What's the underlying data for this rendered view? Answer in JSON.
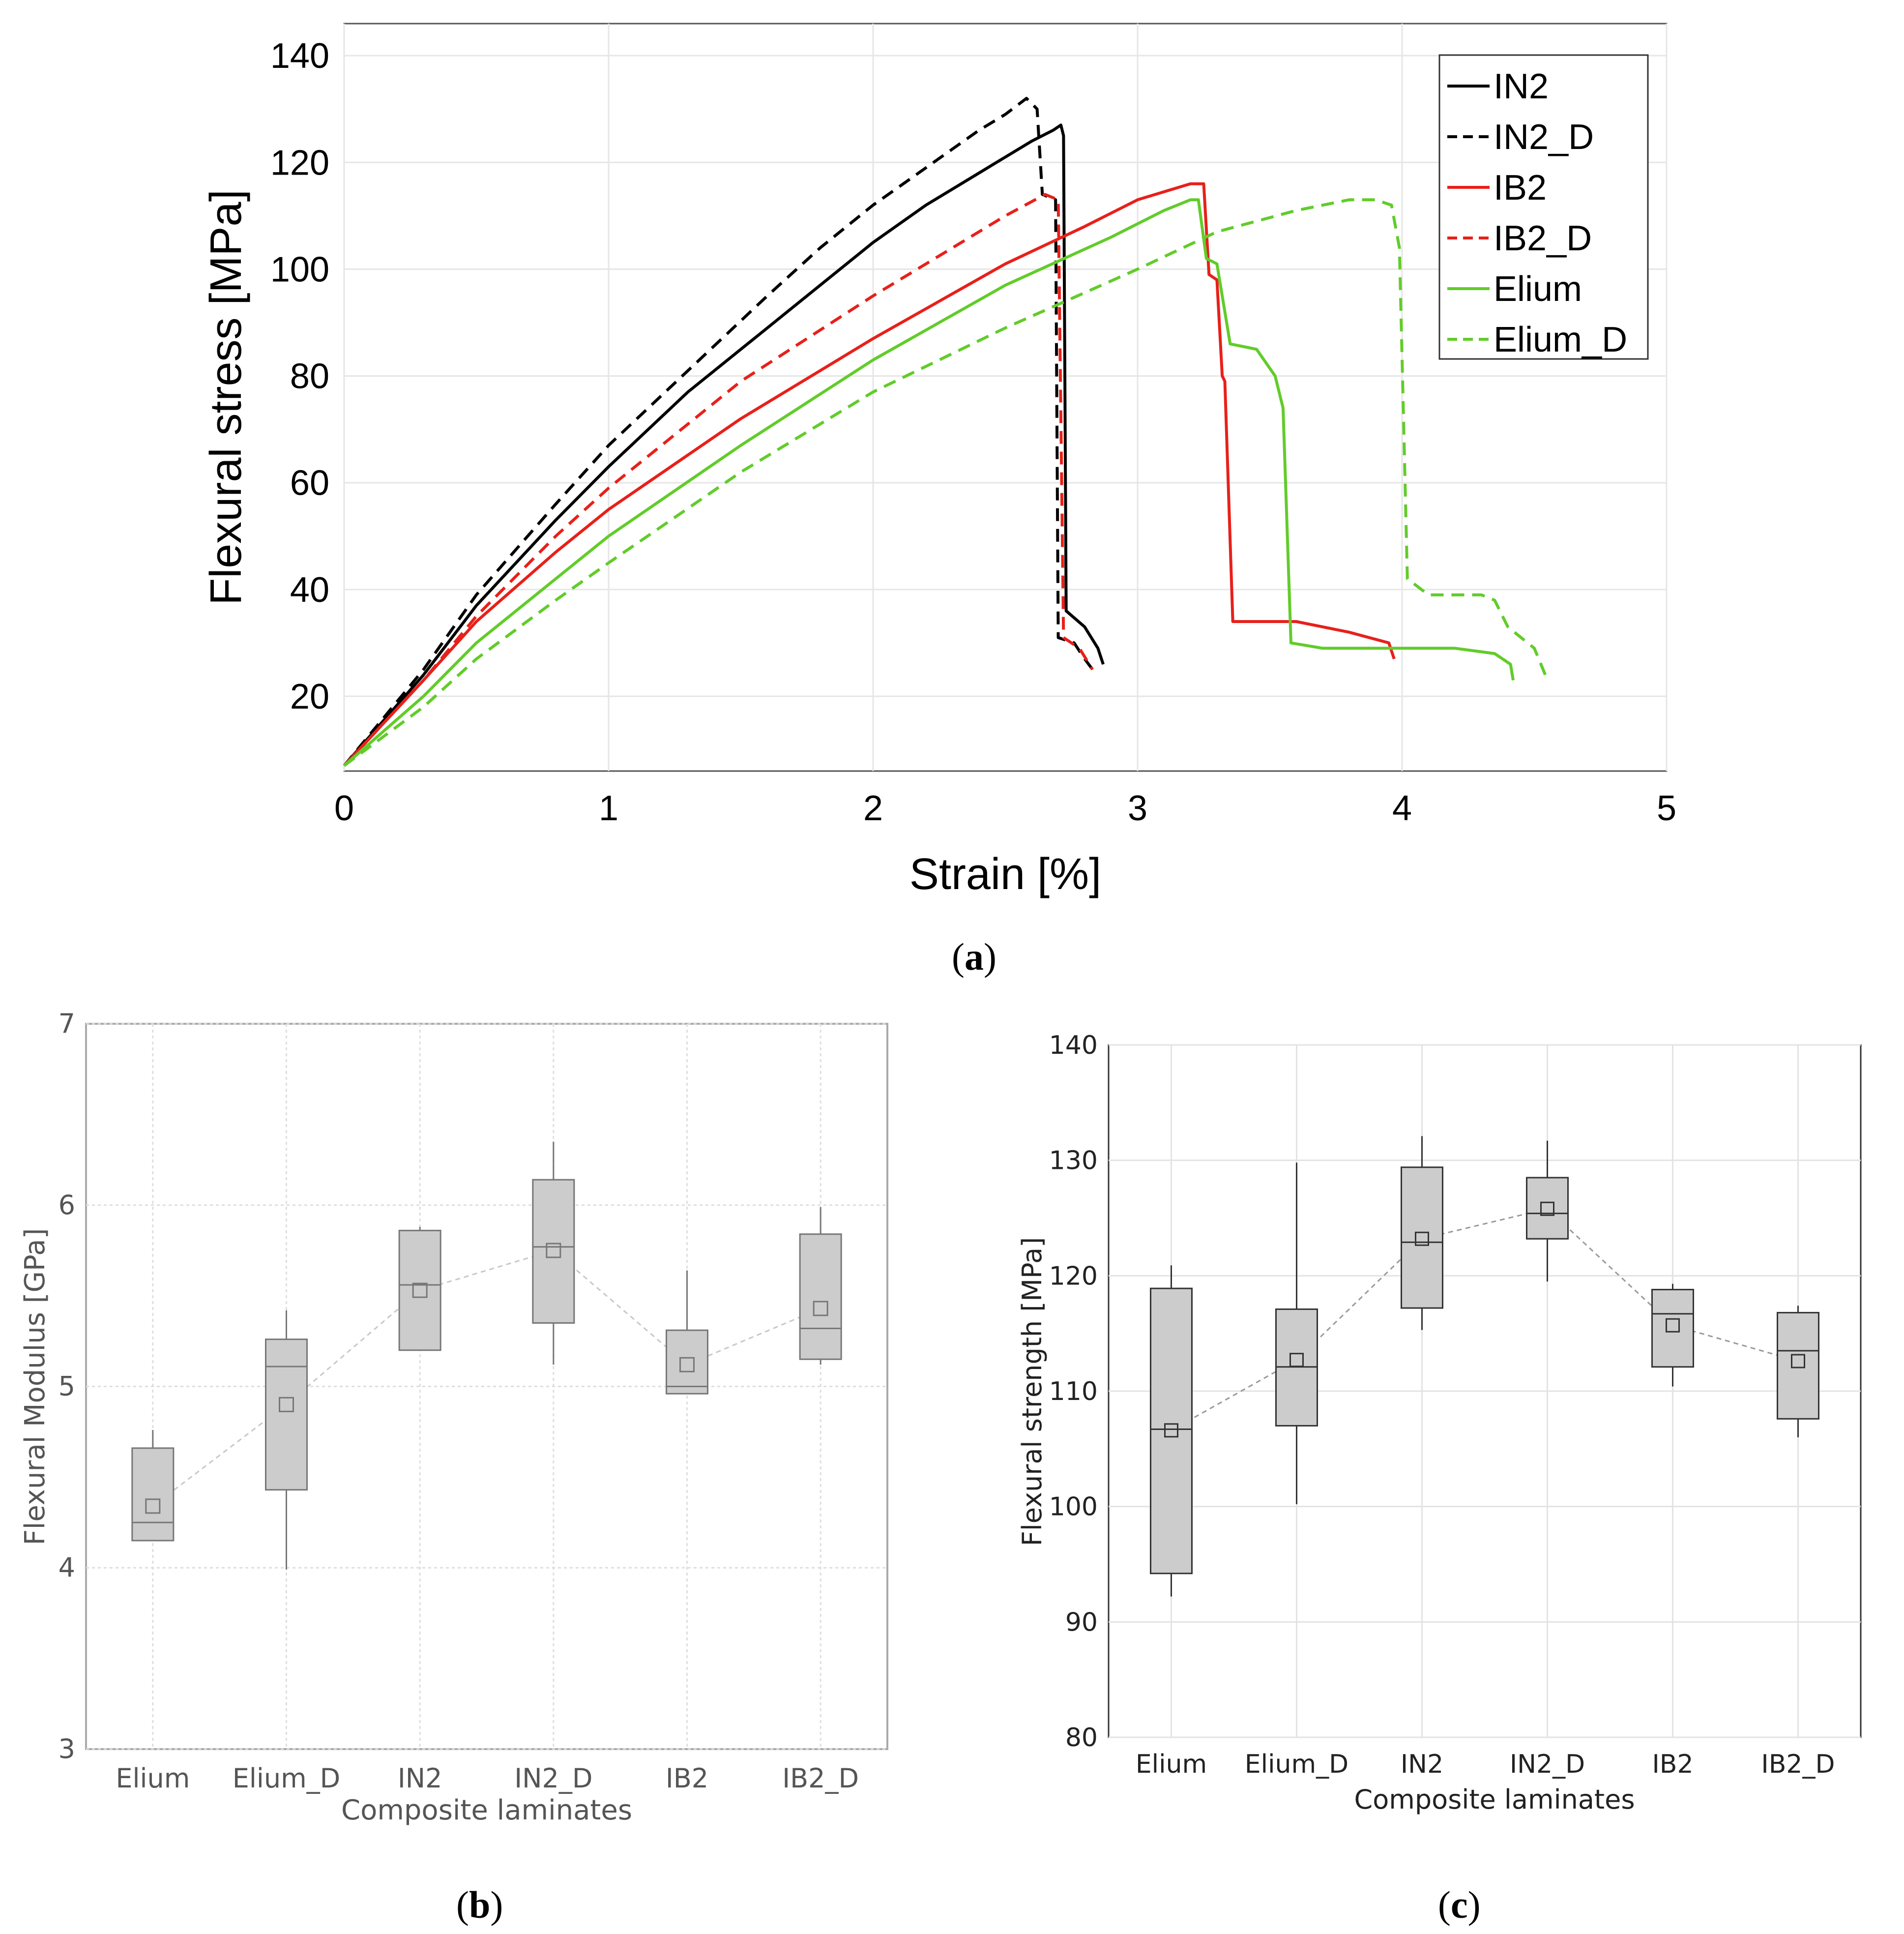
{
  "colors": {
    "black": "#000000",
    "red": "#e8201a",
    "green": "#62cc2a",
    "box_fill": "#cccccc",
    "grid": "#e3e3e3"
  },
  "chart_data": [
    {
      "id": "a",
      "type": "line",
      "panel_label": {
        "open": "(",
        "letter": "a",
        "close": ")"
      },
      "xlabel": "Strain [%]",
      "ylabel": "Flexural stress [MPa]",
      "xlim": [
        0,
        5
      ],
      "ylim": [
        6,
        146
      ],
      "xticks": [
        0,
        1,
        2,
        3,
        4,
        5
      ],
      "yticks": [
        20,
        40,
        60,
        80,
        100,
        120,
        140
      ],
      "grid": true,
      "legend_position": "top-right",
      "series": [
        {
          "name": "IN2",
          "color": "#000000",
          "dash": "solid",
          "points": [
            [
              0,
              7
            ],
            [
              0.3,
              24
            ],
            [
              0.5,
              37
            ],
            [
              0.8,
              53
            ],
            [
              1,
              63
            ],
            [
              1.3,
              77
            ],
            [
              1.6,
              89
            ],
            [
              1.8,
              97
            ],
            [
              2,
              105
            ],
            [
              2.2,
              112
            ],
            [
              2.4,
              118
            ],
            [
              2.5,
              121
            ],
            [
              2.6,
              124
            ],
            [
              2.68,
              126
            ],
            [
              2.71,
              127
            ],
            [
              2.72,
              125
            ],
            [
              2.73,
              36
            ],
            [
              2.8,
              33
            ],
            [
              2.85,
              29
            ],
            [
              2.87,
              26
            ]
          ]
        },
        {
          "name": "IN2_D",
          "color": "#000000",
          "dash": "dashed",
          "points": [
            [
              0,
              7
            ],
            [
              0.3,
              25
            ],
            [
              0.5,
              39
            ],
            [
              0.8,
              56
            ],
            [
              1,
              67
            ],
            [
              1.3,
              81
            ],
            [
              1.6,
              95
            ],
            [
              1.8,
              104
            ],
            [
              2,
              112
            ],
            [
              2.2,
              119
            ],
            [
              2.4,
              126
            ],
            [
              2.5,
              129
            ],
            [
              2.58,
              132
            ],
            [
              2.62,
              130
            ],
            [
              2.64,
              114
            ],
            [
              2.69,
              113
            ],
            [
              2.7,
              31
            ],
            [
              2.76,
              30
            ],
            [
              2.8,
              27
            ],
            [
              2.83,
              25
            ]
          ]
        },
        {
          "name": "IB2",
          "color": "#e8201a",
          "dash": "solid",
          "points": [
            [
              0,
              7
            ],
            [
              0.3,
              23
            ],
            [
              0.5,
              34
            ],
            [
              0.8,
              47
            ],
            [
              1,
              55
            ],
            [
              1.5,
              72
            ],
            [
              2,
              87
            ],
            [
              2.5,
              101
            ],
            [
              2.8,
              108
            ],
            [
              3,
              113
            ],
            [
              3.2,
              116
            ],
            [
              3.25,
              116
            ],
            [
              3.27,
              99
            ],
            [
              3.3,
              98
            ],
            [
              3.32,
              80
            ],
            [
              3.33,
              79
            ],
            [
              3.36,
              34
            ],
            [
              3.45,
              34
            ],
            [
              3.6,
              34
            ],
            [
              3.8,
              32
            ],
            [
              3.95,
              30
            ],
            [
              3.97,
              27
            ]
          ]
        },
        {
          "name": "IB2_D",
          "color": "#e8201a",
          "dash": "dashed",
          "points": [
            [
              0,
              7
            ],
            [
              0.3,
              23
            ],
            [
              0.5,
              35
            ],
            [
              0.8,
              50
            ],
            [
              1,
              59
            ],
            [
              1.5,
              79
            ],
            [
              2,
              95
            ],
            [
              2.3,
              104
            ],
            [
              2.5,
              110
            ],
            [
              2.65,
              114
            ],
            [
              2.7,
              113
            ],
            [
              2.72,
              31
            ],
            [
              2.78,
              29
            ],
            [
              2.83,
              25
            ]
          ]
        },
        {
          "name": "Elium",
          "color": "#62cc2a",
          "dash": "solid",
          "points": [
            [
              0,
              7
            ],
            [
              0.3,
              20
            ],
            [
              0.5,
              30
            ],
            [
              0.8,
              42
            ],
            [
              1,
              50
            ],
            [
              1.5,
              67
            ],
            [
              2,
              83
            ],
            [
              2.5,
              97
            ],
            [
              2.9,
              106
            ],
            [
              3.1,
              111
            ],
            [
              3.2,
              113
            ],
            [
              3.23,
              113
            ],
            [
              3.26,
              102
            ],
            [
              3.3,
              101
            ],
            [
              3.35,
              86
            ],
            [
              3.45,
              85
            ],
            [
              3.52,
              80
            ],
            [
              3.55,
              74
            ],
            [
              3.58,
              30
            ],
            [
              3.7,
              29
            ],
            [
              3.9,
              29
            ],
            [
              4.2,
              29
            ],
            [
              4.35,
              28
            ],
            [
              4.41,
              26
            ],
            [
              4.42,
              23
            ]
          ]
        },
        {
          "name": "Elium_D",
          "color": "#62cc2a",
          "dash": "dashed",
          "points": [
            [
              0,
              7
            ],
            [
              0.3,
              18
            ],
            [
              0.5,
              27
            ],
            [
              0.8,
              38
            ],
            [
              1,
              45
            ],
            [
              1.5,
              62
            ],
            [
              2,
              77
            ],
            [
              2.5,
              89
            ],
            [
              3,
              100
            ],
            [
              3.3,
              107
            ],
            [
              3.6,
              111
            ],
            [
              3.8,
              113
            ],
            [
              3.9,
              113
            ],
            [
              3.96,
              112
            ],
            [
              3.99,
              104
            ],
            [
              4.02,
              42
            ],
            [
              4.1,
              39
            ],
            [
              4.3,
              39
            ],
            [
              4.35,
              38
            ],
            [
              4.4,
              33
            ],
            [
              4.5,
              29
            ],
            [
              4.55,
              23
            ]
          ]
        }
      ]
    },
    {
      "id": "b",
      "type": "box",
      "panel_label": {
        "open": "(",
        "letter": "b",
        "close": ")"
      },
      "xlabel": "Composite laminates",
      "ylabel": "Flexural  Modulus [GPa]",
      "ylim": [
        3,
        7
      ],
      "yticks": [
        3,
        4,
        5,
        6,
        7
      ],
      "grid": true,
      "categories": [
        "Elium",
        "Elium_D",
        "IN2",
        "IN2_D",
        "IB2",
        "IB2_D"
      ],
      "boxes": [
        {
          "min": 4.15,
          "q1": 4.15,
          "median": 4.25,
          "q3": 4.66,
          "max": 4.76,
          "mean": 4.34
        },
        {
          "min": 3.99,
          "q1": 4.43,
          "median": 5.11,
          "q3": 5.26,
          "max": 5.42,
          "mean": 4.9
        },
        {
          "min": 5.2,
          "q1": 5.2,
          "median": 5.56,
          "q3": 5.86,
          "max": 5.88,
          "mean": 5.53
        },
        {
          "min": 5.12,
          "q1": 5.35,
          "median": 5.77,
          "q3": 6.14,
          "max": 6.35,
          "mean": 5.75
        },
        {
          "min": 4.96,
          "q1": 4.96,
          "median": 5.0,
          "q3": 5.31,
          "max": 5.64,
          "mean": 5.12
        },
        {
          "min": 5.12,
          "q1": 5.15,
          "median": 5.32,
          "q3": 5.84,
          "max": 5.99,
          "mean": 5.43
        }
      ]
    },
    {
      "id": "c",
      "type": "box",
      "panel_label": {
        "open": "(",
        "letter": "c",
        "close": ")"
      },
      "xlabel": "Composite laminates",
      "ylabel": "Flexural strength [MPa]",
      "ylim": [
        80,
        140
      ],
      "yticks": [
        80,
        90,
        100,
        110,
        120,
        130,
        140
      ],
      "grid": true,
      "categories": [
        "Elium",
        "Elium_D",
        "IN2",
        "IN2_D",
        "IB2",
        "IB2_D"
      ],
      "boxes": [
        {
          "min": 92.2,
          "q1": 94.2,
          "median": 106.7,
          "q3": 118.9,
          "max": 120.9,
          "mean": 106.6
        },
        {
          "min": 100.2,
          "q1": 107.0,
          "median": 112.1,
          "q3": 117.1,
          "max": 129.8,
          "mean": 112.7
        },
        {
          "min": 115.3,
          "q1": 117.2,
          "median": 122.9,
          "q3": 129.4,
          "max": 132.1,
          "mean": 123.2
        },
        {
          "min": 119.5,
          "q1": 123.2,
          "median": 125.4,
          "q3": 128.5,
          "max": 131.7,
          "mean": 125.8
        },
        {
          "min": 110.4,
          "q1": 112.1,
          "median": 116.7,
          "q3": 118.8,
          "max": 119.3,
          "mean": 115.7
        },
        {
          "min": 106.0,
          "q1": 107.6,
          "median": 113.5,
          "q3": 116.8,
          "max": 117.4,
          "mean": 112.6
        }
      ]
    }
  ]
}
